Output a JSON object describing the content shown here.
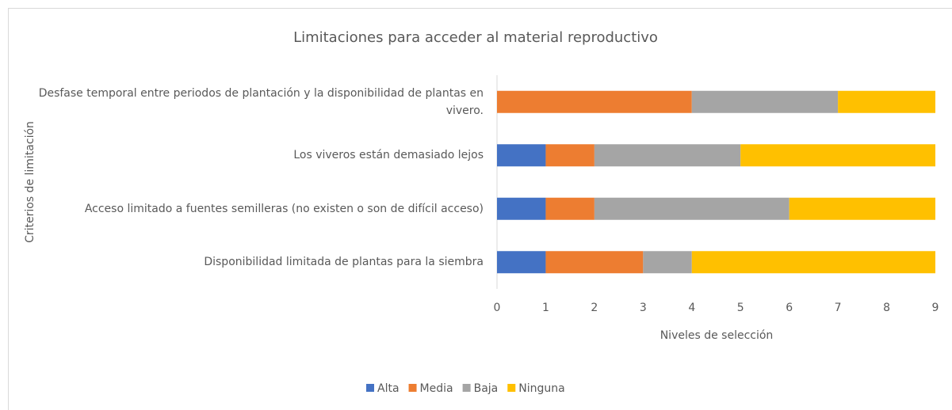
{
  "chart_data": {
    "type": "stacked_barh",
    "title": "Limitaciones para acceder al material reproductivo",
    "x_label": "Niveles de selección",
    "y_label": "Criterios de limitación",
    "categories": [
      "Desfase temporal entre periodos de plantación y la disponibilidad de plantas en vivero.",
      "Los viveros están demasiado lejos",
      "Acceso limitado a fuentes semilleras (no existen o son de difícil acceso)",
      "Disponibilidad limitada de plantas para la siembra"
    ],
    "series": [
      {
        "name": "Alta",
        "color": "#4472c4",
        "values": [
          0,
          1,
          1,
          1
        ]
      },
      {
        "name": "Media",
        "color": "#ed7d31",
        "values": [
          4,
          1,
          1,
          2
        ]
      },
      {
        "name": "Baja",
        "color": "#a5a5a5",
        "values": [
          3,
          3,
          4,
          1
        ]
      },
      {
        "name": "Ninguna",
        "color": "#ffc000",
        "values": [
          2,
          4,
          3,
          5
        ]
      }
    ],
    "xlim": [
      0,
      9
    ],
    "xticks": [
      0,
      1,
      2,
      3,
      4,
      5,
      6,
      7,
      8,
      9
    ],
    "legend": "bottom"
  }
}
